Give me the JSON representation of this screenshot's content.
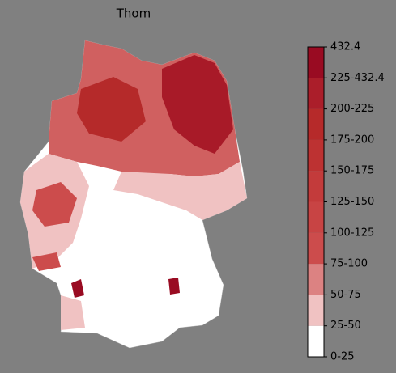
{
  "title": "Thom",
  "colorbar": {
    "labels": [
      "0-25",
      "25-50",
      "50-75",
      "75-100",
      "100-125",
      "125-150",
      "150-175",
      "175-200",
      "200-225",
      "225-432.4",
      "432.4"
    ],
    "colors": [
      "#ffffff",
      "#f0c2c2",
      "#dc8282",
      "#cc4c4c",
      "#c84444",
      "#c33b3b",
      "#bd3232",
      "#b62a2a",
      "#ab1e2a",
      "#990b22"
    ]
  }
}
